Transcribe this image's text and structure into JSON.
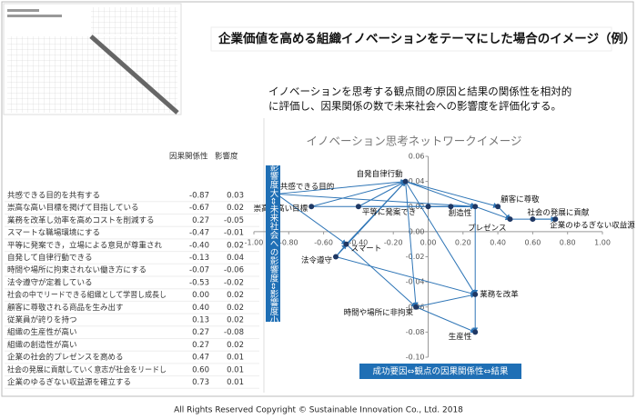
{
  "header": {
    "title": "企業価値を高める組織イノベーションをテーマにした場合のイメージ（例）",
    "description": [
      "イノベーションを思考する観点間の原因と結果の関係性を相対的",
      "に評価し、因果関係の数で未来社会への影響度を評価化する。"
    ]
  },
  "table": {
    "header": [
      "因果関係性",
      "影響度"
    ],
    "rows": [
      [
        "共感できる目的を共有する",
        "-0.87",
        "0.03"
      ],
      [
        "崇高な高い目標を掲げて目指している",
        "-0.67",
        "0.02"
      ],
      [
        "業務を改革し効率を高めコストを削減する",
        "0.27",
        "-0.05"
      ],
      [
        "スマートな職場環境にする",
        "-0.47",
        "-0.01"
      ],
      [
        "平等に発案でき，立場による意見が尊重され",
        "-0.40",
        "0.02"
      ],
      [
        "自発して自律行動できる",
        "-0.13",
        "0.04"
      ],
      [
        "時間や場所に拘束されない働き方にする",
        "-0.07",
        "-0.06"
      ],
      [
        "法令遵守が定着している",
        "-0.53",
        "-0.02"
      ],
      [
        "社会の中でリードできる組織として学習し成長し",
        "0.00",
        "0.02"
      ],
      [
        "顧客に尊敬される商品を生み出す",
        "0.40",
        "0.02"
      ],
      [
        "従業員が誇りを持つ",
        "0.13",
        "0.02"
      ],
      [
        "組織の生産性が高い",
        "0.27",
        "-0.08"
      ],
      [
        "組織の創造性が高い",
        "0.27",
        "0.02"
      ],
      [
        "企業の社会的プレゼンスを高める",
        "0.47",
        "0.01"
      ],
      [
        "社会の発展に貢献していく意志が社会をリードし",
        "0.60",
        "0.01"
      ],
      [
        "企業のゆるぎない収益源を確立する",
        "0.73",
        "0.01"
      ]
    ]
  },
  "chart_data": {
    "type": "scatter",
    "title": "イノベーション思考ネットワークイメージ",
    "y_label": "影響度大⇔未来社会への影響度⇔影響度小",
    "x_label": "成功要因⇔観点の因果関係性⇔結果",
    "x": [
      -0.87,
      -0.67,
      0.27,
      -0.47,
      -0.4,
      -0.13,
      -0.07,
      -0.53,
      0.0,
      0.4,
      0.13,
      0.27,
      0.27,
      0.47,
      0.6,
      0.73
    ],
    "values": [
      0.03,
      0.02,
      -0.05,
      -0.01,
      0.02,
      0.04,
      -0.06,
      -0.02,
      0.02,
      0.02,
      0.02,
      -0.08,
      0.02,
      0.01,
      0.01,
      0.01
    ],
    "point_labels": [
      "共感できる目的",
      "崇高な高い目標",
      "業務を改革",
      "スマート",
      "平等に発案でき",
      "自発自律行動",
      "時間や場所に非拘束",
      "法令遵守",
      null,
      "顧客に尊敬",
      null,
      "生産性",
      "創造性",
      "プレゼンス",
      "社会の発展に貢献",
      "企業のゆるぎない収益源"
    ],
    "color": "#1f3864",
    "edge_color": "#2e75b6",
    "xlim": [
      -1,
      1
    ],
    "xticks": [
      {
        "value": -1,
        "label": "-1.00"
      },
      {
        "value": -0.8,
        "label": "-0.80"
      },
      {
        "value": -0.6,
        "label": "-0.60"
      },
      {
        "value": -0.4,
        "label": "-0.40"
      },
      {
        "value": -0.2,
        "label": "-0.20"
      },
      {
        "value": 0,
        "label": "0.00"
      },
      {
        "value": 0.2,
        "label": "0.20"
      },
      {
        "value": 0.4,
        "label": "0.40"
      },
      {
        "value": 0.6,
        "label": "0.60"
      },
      {
        "value": 0.8,
        "label": "0.80"
      },
      {
        "value": 1,
        "label": "1.00"
      }
    ],
    "ylim": [
      -0.1,
      0.06
    ],
    "yticks": [
      {
        "value": -0.1,
        "label": "-0.10"
      },
      -0.08,
      -0.06,
      -0.04,
      -0.02,
      {
        "value": 0,
        "label": "0.00"
      },
      0.02,
      0.04,
      0.06
    ]
  },
  "footer": "All Rights Reserved  Copyright  © Sustainable Innovation Co., Ltd.  2018"
}
